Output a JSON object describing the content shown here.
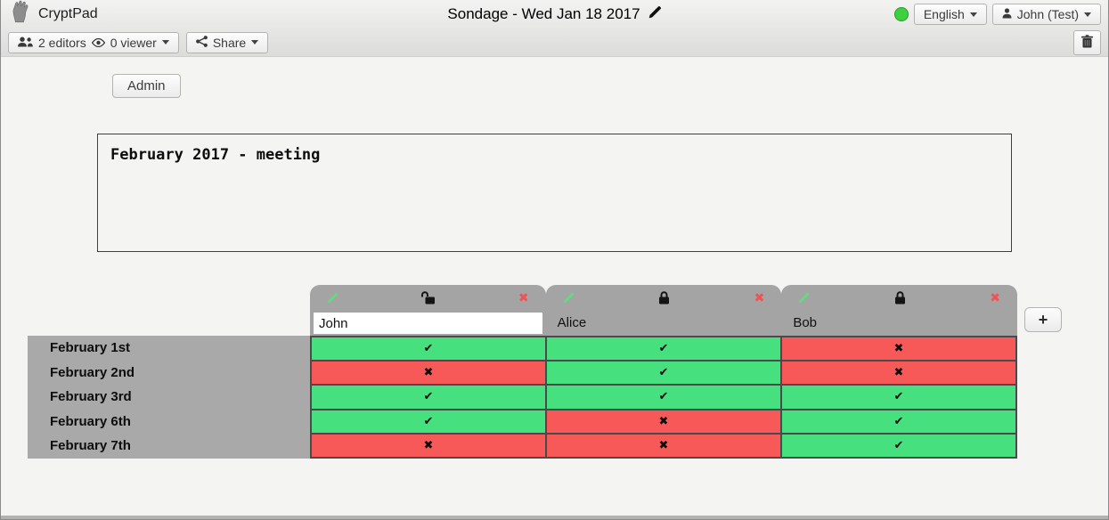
{
  "topbar": {
    "app_name": "CryptPad",
    "doc_title": "Sondage - Wed Jan 18 2017",
    "language_label": "English",
    "user_label": "John (Test)",
    "status_color": "#3ed03e"
  },
  "toolbar": {
    "editors_label": "2 editors",
    "viewers_label": "0 viewer",
    "share_label": "Share"
  },
  "admin_label": "Admin",
  "description_text": "February 2017 - meeting",
  "poll": {
    "add_column_label": "+",
    "columns": [
      {
        "name": "John",
        "editable": true,
        "locked": false
      },
      {
        "name": "Alice",
        "editable": false,
        "locked": true
      },
      {
        "name": "Bob",
        "editable": false,
        "locked": true
      }
    ],
    "rows": [
      {
        "label": "February 1st",
        "votes": [
          "yes",
          "yes",
          "no"
        ]
      },
      {
        "label": "February 2nd",
        "votes": [
          "no",
          "yes",
          "no"
        ]
      },
      {
        "label": "February 3rd",
        "votes": [
          "yes",
          "yes",
          "yes"
        ]
      },
      {
        "label": "February 6th",
        "votes": [
          "yes",
          "no",
          "yes"
        ]
      },
      {
        "label": "February 7th",
        "votes": [
          "no",
          "no",
          "yes"
        ]
      }
    ],
    "glyphs": {
      "yes": "✔",
      "no": "✖",
      "remove": "✖"
    },
    "colors": {
      "yes": "#47e07e",
      "no": "#f75858"
    }
  }
}
